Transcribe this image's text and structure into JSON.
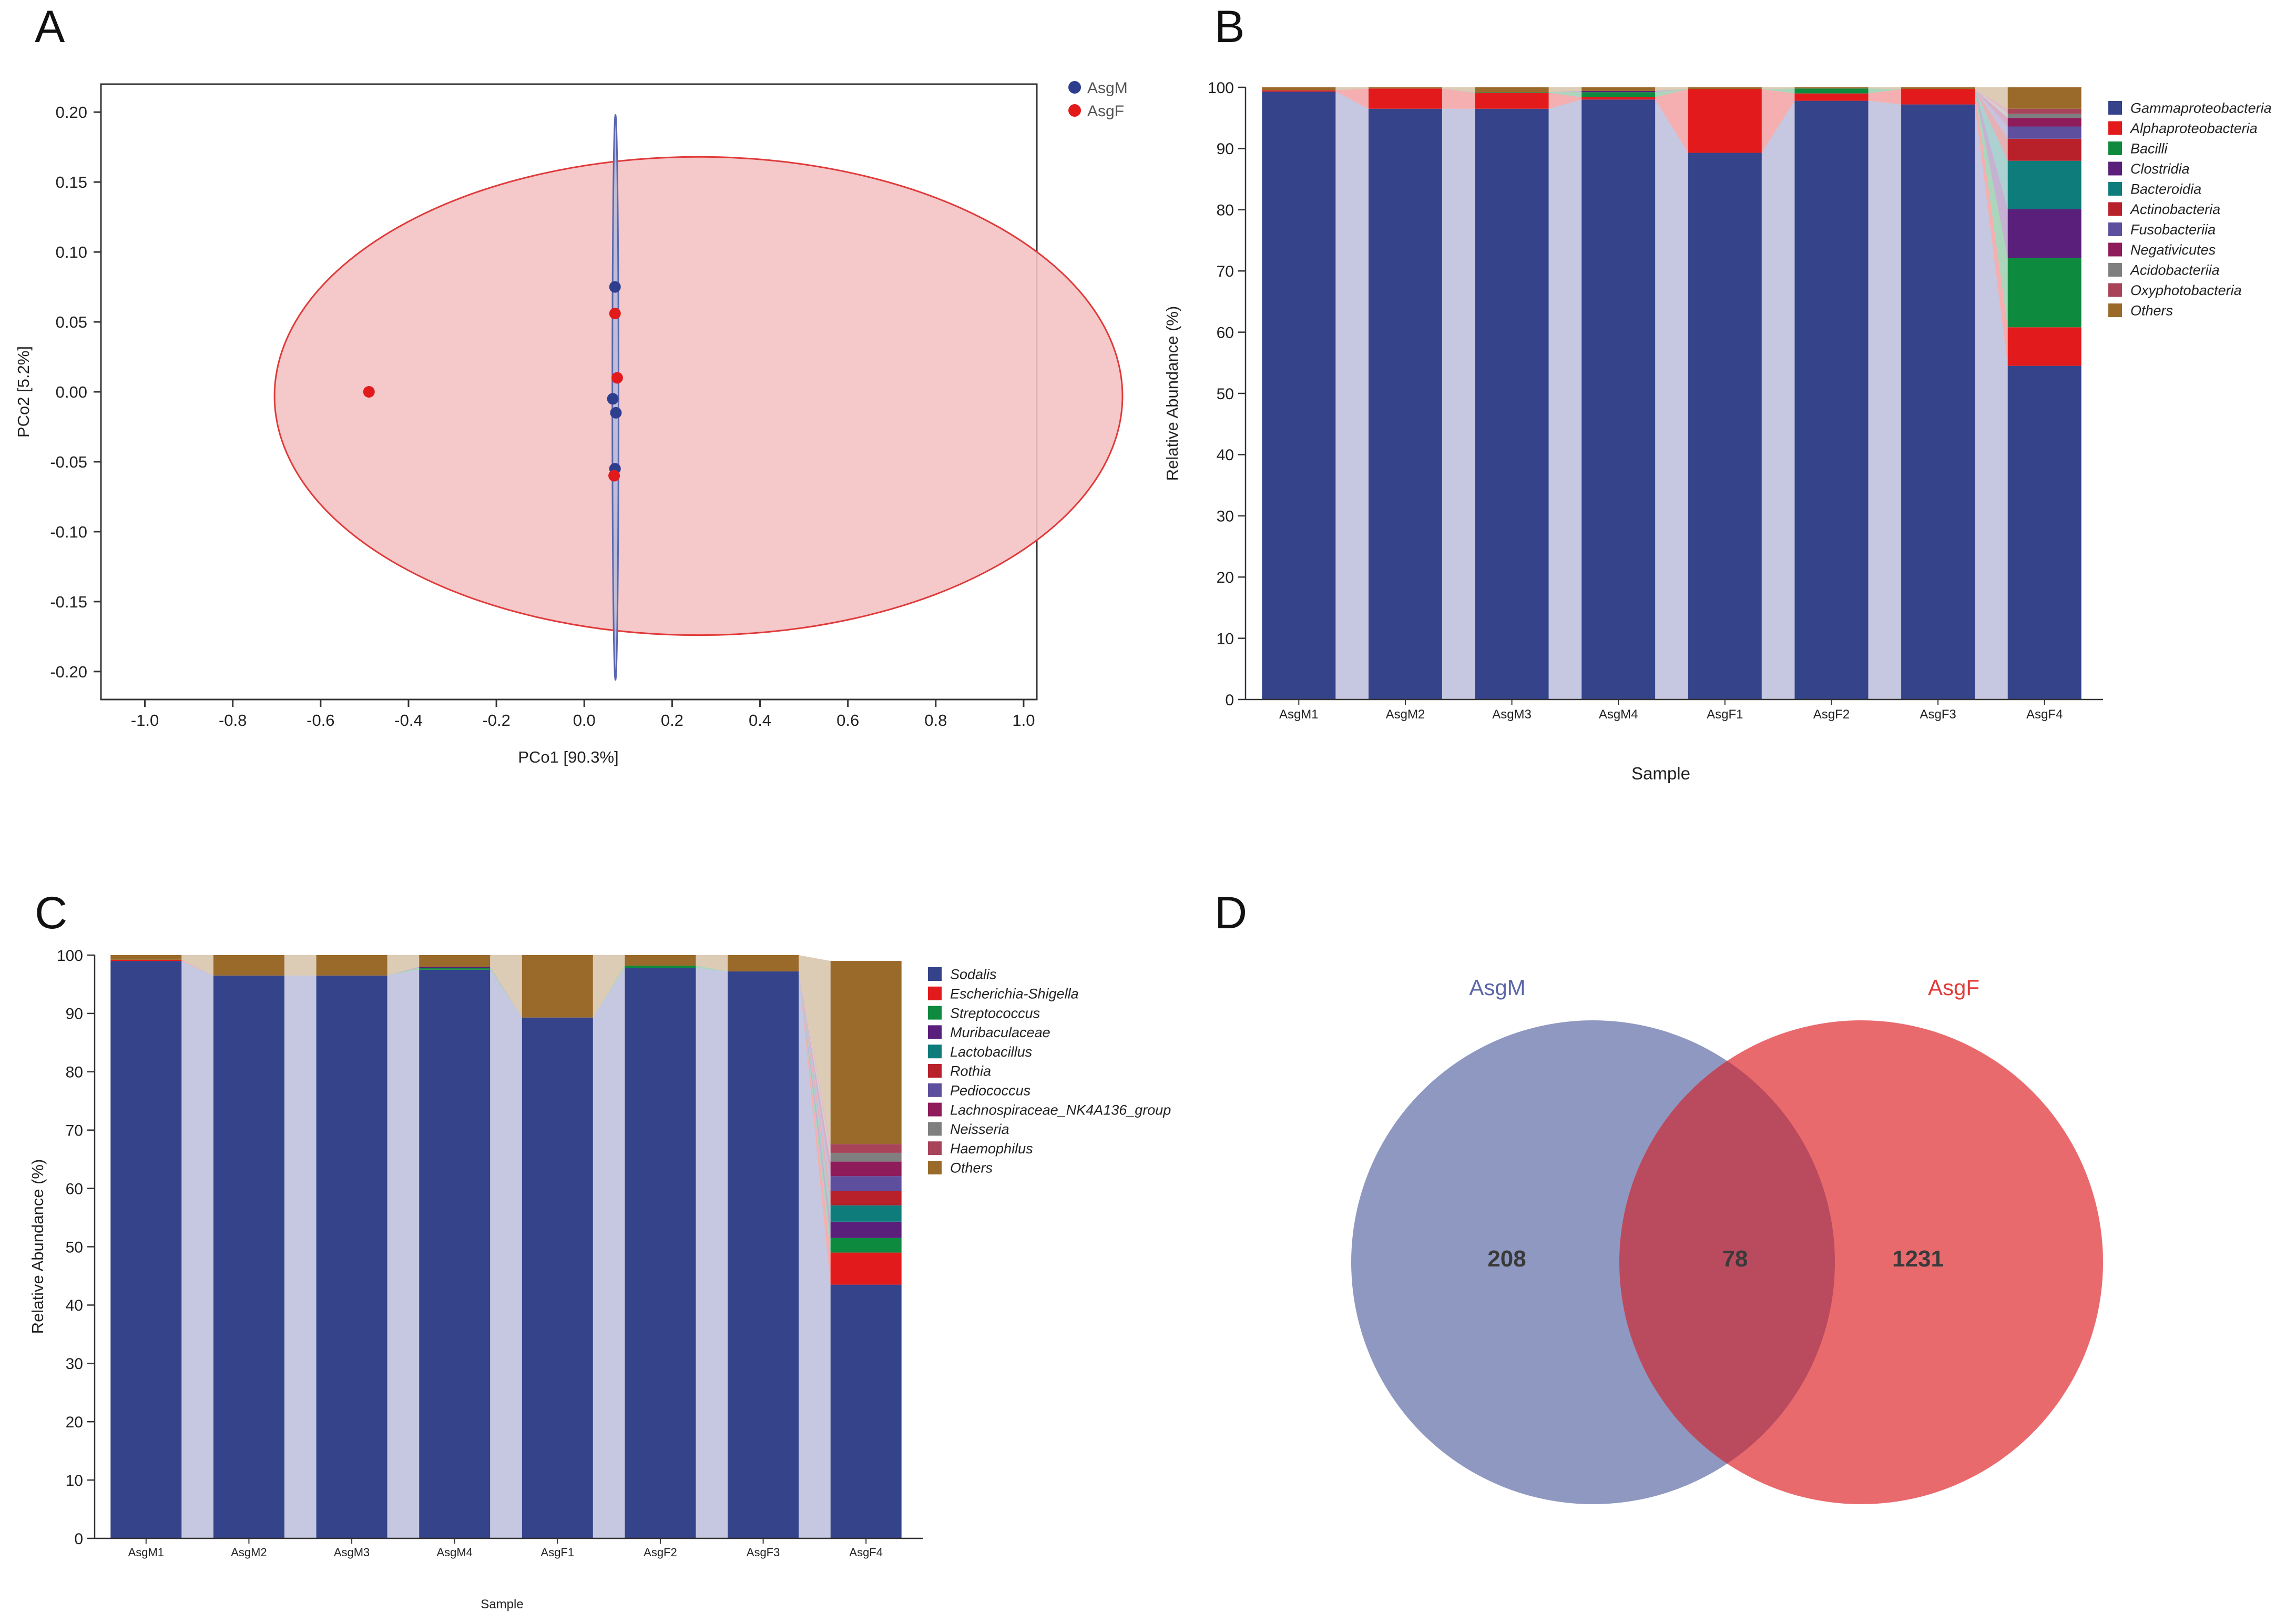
{
  "panel_labels": [
    "A",
    "B",
    "C",
    "D"
  ],
  "colors": {
    "asgm_point": "#2E3E8E",
    "asgf_point": "#E21A1C",
    "asgf_ellipse_fill": "#F4C2C4",
    "asgm_ellipse_fill": "#B9BDD8",
    "connector": "#C5C8E0",
    "venn_m": "#8F98C0",
    "venn_f": "#E96A6D",
    "venn_overlap": "#BA4A5E",
    "venn_m_label": "#5C65A8",
    "venn_f_label": "#E23A3A",
    "venn_count": "#3A3A3A"
  },
  "chart_data": [
    {
      "id": "A",
      "type": "scatter",
      "title": "",
      "xlabel": "PCo1 [90.3%]",
      "ylabel": "PCo2 [5.2%]",
      "xlim": [
        -1.1,
        1.03
      ],
      "ylim": [
        -0.22,
        0.22
      ],
      "xticks": [
        -1.0,
        -0.8,
        -0.6,
        -0.4,
        -0.2,
        0.0,
        0.2,
        0.4,
        0.6,
        0.8,
        1.0
      ],
      "xtick_labels": [
        "-1.0",
        "-0.8",
        "-0.6",
        "-0.4",
        "-0.2",
        "0.0",
        "0.2",
        "0.4",
        "0.6",
        "0.8",
        "1.0"
      ],
      "yticks": [
        0.2,
        0.15,
        0.1,
        0.05,
        0.0,
        -0.05,
        -0.1,
        -0.15,
        -0.2
      ],
      "ytick_labels": [
        "0.20",
        "0.15",
        "0.10",
        "0.05",
        "0.00",
        "-0.05",
        "-0.10",
        "-0.15",
        "-0.20"
      ],
      "legend": [
        "AsgM",
        "AsgF"
      ],
      "legend_position": "top-right",
      "series": [
        {
          "name": "AsgM",
          "color": "#2E3E8E",
          "points": [
            [
              0.07,
              0.075
            ],
            [
              0.065,
              -0.005
            ],
            [
              0.072,
              -0.015
            ],
            [
              0.07,
              -0.055
            ]
          ]
        },
        {
          "name": "AsgF",
          "color": "#E21A1C",
          "points": [
            [
              -0.49,
              0.0
            ],
            [
              0.07,
              0.056
            ],
            [
              0.075,
              0.01
            ],
            [
              0.068,
              -0.06
            ]
          ]
        }
      ],
      "ellipses": [
        {
          "group": "AsgF",
          "center": [
            0.26,
            -0.003
          ],
          "radii": [
            0.965,
            0.171
          ]
        },
        {
          "group": "AsgM",
          "center": [
            0.071,
            -0.004
          ],
          "radii": [
            0.007,
            0.202
          ]
        }
      ]
    },
    {
      "id": "B",
      "type": "bar",
      "stacked": true,
      "title": "",
      "xlabel": "Sample",
      "ylabel": "Relative Abundance (%)",
      "ylim": [
        0,
        100
      ],
      "yticks": [
        0,
        10,
        20,
        30,
        40,
        50,
        60,
        70,
        80,
        90,
        100
      ],
      "categories": [
        "AsgM1",
        "AsgM2",
        "AsgM3",
        "AsgM4",
        "AsgF1",
        "AsgF2",
        "AsgF3",
        "AsgF4"
      ],
      "legend_position": "right",
      "series": [
        {
          "name": "Gammaproteobacteria",
          "color": "#34438A",
          "values": [
            99.3,
            96.5,
            96.5,
            98.0,
            89.3,
            97.8,
            97.2,
            54.5
          ]
        },
        {
          "name": "Alphaproteobacteria",
          "color": "#E21A1C",
          "values": [
            0.2,
            3.3,
            2.6,
            0.4,
            10.4,
            1.2,
            2.5,
            6.3
          ]
        },
        {
          "name": "Bacilli",
          "color": "#0E8A3E",
          "values": [
            0.0,
            0.0,
            0.1,
            0.8,
            0.0,
            0.8,
            0.0,
            11.3
          ]
        },
        {
          "name": "Clostridia",
          "color": "#5A1F7A",
          "values": [
            0.0,
            0.0,
            0.0,
            0.2,
            0.0,
            0.0,
            0.0,
            8.0
          ]
        },
        {
          "name": "Bacteroidia",
          "color": "#0E7C7B",
          "values": [
            0.0,
            0.0,
            0.0,
            0.0,
            0.0,
            0.0,
            0.0,
            7.9
          ]
        },
        {
          "name": "Actinobacteria",
          "color": "#B8202A",
          "values": [
            0.0,
            0.0,
            0.0,
            0.0,
            0.0,
            0.0,
            0.0,
            3.6
          ]
        },
        {
          "name": "Fusobacteriia",
          "color": "#5E4F9E",
          "values": [
            0.0,
            0.0,
            0.0,
            0.0,
            0.0,
            0.0,
            0.0,
            2.0
          ]
        },
        {
          "name": "Negativicutes",
          "color": "#8E1B5A",
          "values": [
            0.0,
            0.0,
            0.0,
            0.0,
            0.0,
            0.0,
            0.0,
            1.4
          ]
        },
        {
          "name": "Acidobacteriia",
          "color": "#7F7F7F",
          "values": [
            0.0,
            0.0,
            0.0,
            0.0,
            0.0,
            0.0,
            0.0,
            0.7
          ]
        },
        {
          "name": "Oxyphotobacteria",
          "color": "#A8435A",
          "values": [
            0.0,
            0.0,
            0.0,
            0.0,
            0.0,
            0.0,
            0.0,
            0.8
          ]
        },
        {
          "name": "Others",
          "color": "#9A6A2A",
          "values": [
            0.5,
            0.2,
            0.8,
            0.6,
            0.3,
            0.2,
            0.3,
            3.5
          ]
        }
      ]
    },
    {
      "id": "C",
      "type": "bar",
      "stacked": true,
      "title": "",
      "xlabel": "Sample",
      "ylabel": "Relative Abundance (%)",
      "ylim": [
        0,
        100
      ],
      "yticks": [
        0,
        10,
        20,
        30,
        40,
        50,
        60,
        70,
        80,
        90,
        100
      ],
      "categories": [
        "AsgM1",
        "AsgM2",
        "AsgM3",
        "AsgM4",
        "AsgF1",
        "AsgF2",
        "AsgF3",
        "AsgF4"
      ],
      "legend_position": "right",
      "series": [
        {
          "name": "Sodalis",
          "color": "#34438A",
          "values": [
            99.0,
            96.5,
            96.5,
            97.5,
            89.3,
            97.8,
            97.2,
            43.5
          ]
        },
        {
          "name": "Escherichia-Shigella",
          "color": "#E21A1C",
          "values": [
            0.2,
            0.0,
            0.0,
            0.0,
            0.0,
            0.0,
            0.0,
            5.5
          ]
        },
        {
          "name": "Streptococcus",
          "color": "#0E8A3E",
          "values": [
            0.0,
            0.0,
            0.0,
            0.3,
            0.0,
            0.4,
            0.0,
            2.5
          ]
        },
        {
          "name": "Muribaculaceae",
          "color": "#5A1F7A",
          "values": [
            0.0,
            0.0,
            0.0,
            0.2,
            0.0,
            0.0,
            0.0,
            2.8
          ]
        },
        {
          "name": "Lactobacillus",
          "color": "#0E7C7B",
          "values": [
            0.0,
            0.0,
            0.0,
            0.0,
            0.0,
            0.0,
            0.0,
            2.8
          ]
        },
        {
          "name": "Rothia",
          "color": "#B8202A",
          "values": [
            0.0,
            0.0,
            0.0,
            0.0,
            0.0,
            0.0,
            0.0,
            2.5
          ]
        },
        {
          "name": "Pediococcus",
          "color": "#5E4F9E",
          "values": [
            0.0,
            0.0,
            0.0,
            0.0,
            0.0,
            0.0,
            0.0,
            2.5
          ]
        },
        {
          "name": "Lachnospiraceae_NK4A136_group",
          "color": "#8E1B5A",
          "values": [
            0.0,
            0.0,
            0.0,
            0.0,
            0.0,
            0.0,
            0.0,
            2.5
          ]
        },
        {
          "name": "Neisseria",
          "color": "#7F7F7F",
          "values": [
            0.0,
            0.0,
            0.0,
            0.0,
            0.0,
            0.0,
            0.0,
            1.5
          ]
        },
        {
          "name": "Haemophilus",
          "color": "#A8435A",
          "values": [
            0.0,
            0.0,
            0.0,
            0.0,
            0.0,
            0.0,
            0.0,
            1.5
          ]
        },
        {
          "name": "Others",
          "color": "#9A6A2A",
          "values": [
            0.8,
            3.5,
            3.5,
            2.0,
            10.7,
            1.8,
            2.8,
            31.4
          ]
        }
      ]
    },
    {
      "id": "D",
      "type": "venn",
      "sets": [
        {
          "name": "AsgM",
          "only": 208
        },
        {
          "name": "AsgF",
          "only": 1231
        }
      ],
      "intersection": 78
    }
  ]
}
